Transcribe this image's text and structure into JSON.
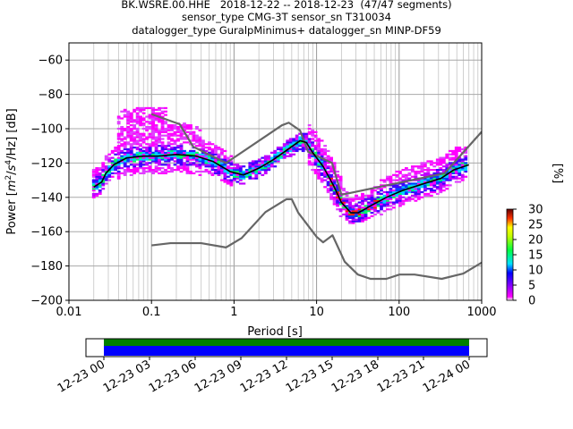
{
  "title": {
    "line1": "BK.WSRE.00.HHE   2018-12-22 -- 2018-12-23  (47/47 segments)",
    "line2": "sensor_type CMG-3T sensor_sn T310034",
    "line3": "datalogger_type GuralpMinimus+ datalogger_sn MINP-DF59"
  },
  "chart_data": [
    {
      "type": "heatmap",
      "subtype": "PPSD probabilistic power spectral density",
      "xlabel": "Period [s]",
      "ylabel": "Power [m²/s⁴/Hz] [dB]",
      "ylabel_parts": {
        "prefix": "Power [",
        "m": "m",
        "exp2": "2",
        "slash": "/",
        "s": "s",
        "exp4": "4",
        "hz": "/Hz] [dB]"
      },
      "x_scale": "log",
      "xlim": [
        0.01,
        1000
      ],
      "ylim": [
        -200,
        -50
      ],
      "x_ticks": [
        {
          "value": 0.01,
          "label": "0.01"
        },
        {
          "value": 0.1,
          "label": "0.1"
        },
        {
          "value": 1,
          "label": "1"
        },
        {
          "value": 10,
          "label": "10"
        },
        {
          "value": 100,
          "label": "100"
        },
        {
          "value": 1000,
          "label": "1000"
        }
      ],
      "y_ticks": [
        {
          "value": -60,
          "label": "−60"
        },
        {
          "value": -80,
          "label": "−80"
        },
        {
          "value": -100,
          "label": "−100"
        },
        {
          "value": -120,
          "label": "−120"
        },
        {
          "value": -140,
          "label": "−140"
        },
        {
          "value": -160,
          "label": "−160"
        },
        {
          "value": -180,
          "label": "−180"
        },
        {
          "value": -200,
          "label": "−200"
        }
      ],
      "grid": "on (x major and minor, y major)",
      "colorbar": {
        "label": "[%]",
        "range": [
          0,
          30
        ],
        "ticks": [
          {
            "value": 0,
            "label": "0"
          },
          {
            "value": 5,
            "label": "5"
          },
          {
            "value": 10,
            "label": "10"
          },
          {
            "value": 15,
            "label": "15"
          },
          {
            "value": 20,
            "label": "20"
          },
          {
            "value": 25,
            "label": "25"
          },
          {
            "value": 30,
            "label": "30"
          }
        ],
        "colormap_stops": [
          "#ffffff",
          "#ff00ff",
          "#0000ff",
          "#00ffff",
          "#00ff00",
          "#ffff00",
          "#ff0000",
          "#800000"
        ]
      },
      "series": [
        {
          "role": "noise model high (NHNM)",
          "color": "#666666",
          "points": [
            [
              0.1,
              -91.5
            ],
            [
              0.22,
              -97.4
            ],
            [
              0.32,
              -110.5
            ],
            [
              0.8,
              -120
            ],
            [
              3.8,
              -98
            ],
            [
              4.6,
              -96.5
            ],
            [
              6.3,
              -101
            ],
            [
              7.9,
              -113.5
            ],
            [
              15.4,
              -120
            ],
            [
              20,
              -138.5
            ],
            [
              354.8,
              -126
            ],
            [
              10000,
              -48
            ]
          ]
        },
        {
          "role": "noise model low (NLNM)",
          "color": "#666666",
          "points": [
            [
              0.1,
              -168
            ],
            [
              0.17,
              -166.7
            ],
            [
              0.4,
              -166.7
            ],
            [
              0.8,
              -169.2
            ],
            [
              1.24,
              -163.7
            ],
            [
              2.4,
              -148.6
            ],
            [
              4.3,
              -141.1
            ],
            [
              5,
              -141.1
            ],
            [
              6,
              -149
            ],
            [
              10,
              -163
            ],
            [
              12,
              -166.2
            ],
            [
              15.6,
              -162.1
            ],
            [
              21.9,
              -177.5
            ],
            [
              31.6,
              -185
            ],
            [
              45,
              -187.5
            ],
            [
              70,
              -187.5
            ],
            [
              101,
              -185
            ],
            [
              154,
              -185
            ],
            [
              328,
              -187.5
            ],
            [
              600,
              -184.4
            ],
            [
              1000,
              -178
            ]
          ]
        },
        {
          "role": "mean / mode curve",
          "color": "#000000",
          "points": [
            [
              0.02,
              -134
            ],
            [
              0.025,
              -131
            ],
            [
              0.028,
              -126
            ],
            [
              0.035,
              -121
            ],
            [
              0.05,
              -117
            ],
            [
              0.08,
              -116
            ],
            [
              0.12,
              -116
            ],
            [
              0.2,
              -115
            ],
            [
              0.35,
              -116
            ],
            [
              0.55,
              -119
            ],
            [
              0.9,
              -125
            ],
            [
              1.3,
              -127
            ],
            [
              2,
              -123
            ],
            [
              3,
              -118
            ],
            [
              4.5,
              -112
            ],
            [
              6.3,
              -107
            ],
            [
              7.5,
              -108
            ],
            [
              9,
              -114
            ],
            [
              12,
              -122
            ],
            [
              16,
              -133
            ],
            [
              20,
              -143
            ],
            [
              26,
              -149
            ],
            [
              32,
              -149
            ],
            [
              45,
              -145
            ],
            [
              70,
              -140
            ],
            [
              110,
              -136
            ],
            [
              200,
              -132
            ],
            [
              320,
              -129
            ],
            [
              460,
              -124
            ],
            [
              700,
              -121
            ]
          ]
        }
      ]
    },
    {
      "type": "timeline",
      "role": "data coverage bar",
      "x_ticks": [
        "12-23 00",
        "12-23 03",
        "12-23 06",
        "12-23 09",
        "12-23 12",
        "12-23 15",
        "12-23 18",
        "12-23 21",
        "12-24 00"
      ],
      "bars": [
        {
          "role": "segments used",
          "color": "#008000",
          "start": "12-23 00",
          "end": "12-24 00"
        },
        {
          "role": "data available",
          "color": "#0000ff",
          "start": "12-23 00",
          "end": "12-24 00"
        }
      ]
    }
  ]
}
